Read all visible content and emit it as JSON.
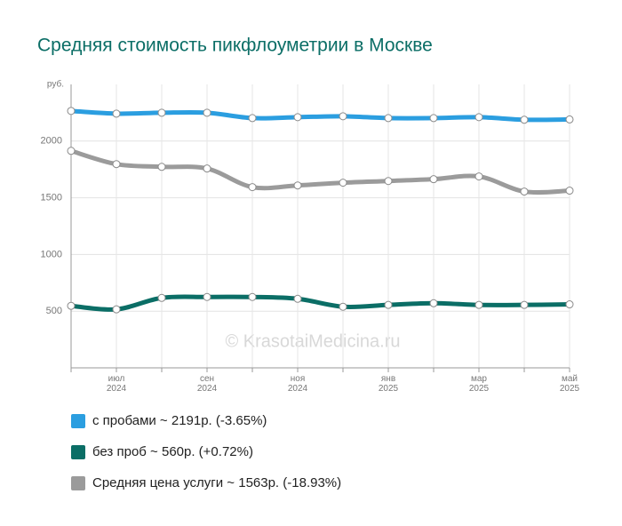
{
  "chart_data": {
    "type": "line",
    "title": "Средняя стоимость пикфлоуметрии в Москве",
    "watermark": "© KrasotaiMedicina.ru",
    "y_unit": "руб.",
    "categories": [
      null,
      "июл 2024",
      null,
      "сен 2024",
      null,
      "ноя 2024",
      null,
      "янв 2025",
      null,
      "мар 2025",
      null,
      "май 2025"
    ],
    "ylim": [
      0,
      2500
    ],
    "yticks": [
      500,
      1000,
      1500,
      2000
    ],
    "grid": true,
    "series": [
      {
        "name": "с пробами ~ 2191р. (-3.65%)",
        "color": "#2b9ee0",
        "values": [
          2266,
          2242,
          2250,
          2250,
          2203,
          2211,
          2219,
          2203,
          2203,
          2211,
          2188,
          2191
        ]
      },
      {
        "name": "без проб ~ 560р. (+0.72%)",
        "color": "#0b6e66",
        "values": [
          547,
          516,
          617,
          625,
          625,
          609,
          539,
          555,
          570,
          555,
          555,
          560
        ]
      },
      {
        "name": "Средняя цена услуги ~ 1563р. (-18.93%)",
        "color": "#9b9b9b",
        "values": [
          1914,
          1797,
          1773,
          1758,
          1594,
          1609,
          1633,
          1648,
          1664,
          1688,
          1555,
          1563
        ]
      }
    ]
  }
}
